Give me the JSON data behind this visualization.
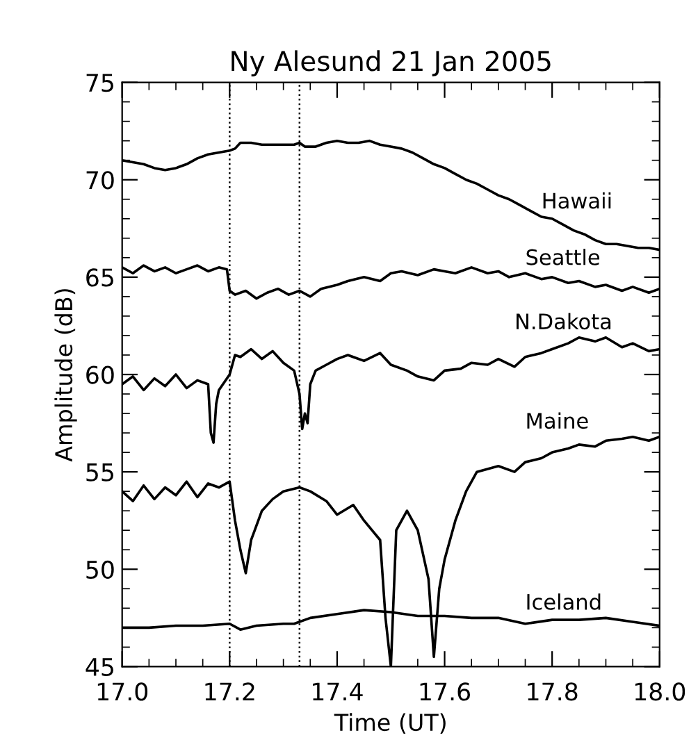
{
  "chart_data": {
    "type": "line",
    "title": "Ny Alesund 21 Jan 2005",
    "xlabel": "Time (UT)",
    "ylabel": "Amplitude (dB)",
    "xlim": [
      17.0,
      18.0
    ],
    "xticks": [
      {
        "value": 17.0,
        "label": "17.0"
      },
      17.2,
      17.4,
      17.6,
      17.8,
      {
        "value": 18.0,
        "label": "18.0"
      }
    ],
    "ylim": [
      45,
      75
    ],
    "yticks": [
      45,
      50,
      55,
      60,
      65,
      70,
      75
    ],
    "grid": false,
    "legend": "right",
    "marker": "none",
    "line_style": "solid",
    "ref_lines": [
      {
        "axis": "x",
        "value": 17.2,
        "color": "#000000",
        "line_style": "dotted"
      },
      {
        "axis": "x",
        "value": 17.33,
        "color": "#000000",
        "line_style": "dotted"
      }
    ],
    "series": [
      {
        "name": "Hawaii",
        "color": "#000000",
        "x": [
          17.0,
          17.02,
          17.04,
          17.06,
          17.08,
          17.1,
          17.12,
          17.14,
          17.16,
          17.18,
          17.2,
          17.21,
          17.22,
          17.24,
          17.26,
          17.28,
          17.3,
          17.32,
          17.33,
          17.34,
          17.36,
          17.38,
          17.4,
          17.42,
          17.44,
          17.46,
          17.48,
          17.5,
          17.52,
          17.54,
          17.56,
          17.58,
          17.6,
          17.62,
          17.64,
          17.66,
          17.68,
          17.7,
          17.72,
          17.74,
          17.76,
          17.78,
          17.8,
          17.82,
          17.84,
          17.86,
          17.88,
          17.9,
          17.92,
          17.94,
          17.96,
          17.98,
          18.0
        ],
        "values": [
          71.0,
          70.9,
          70.8,
          70.6,
          70.5,
          70.6,
          70.8,
          71.1,
          71.3,
          71.4,
          71.5,
          71.6,
          71.9,
          71.9,
          71.8,
          71.8,
          71.8,
          71.8,
          71.9,
          71.7,
          71.7,
          71.9,
          72.0,
          71.9,
          71.9,
          72.0,
          71.8,
          71.7,
          71.6,
          71.4,
          71.1,
          70.8,
          70.6,
          70.3,
          70.0,
          69.8,
          69.5,
          69.2,
          69.0,
          68.7,
          68.4,
          68.1,
          68.0,
          67.7,
          67.4,
          67.2,
          66.9,
          66.7,
          66.7,
          66.6,
          66.5,
          66.5,
          66.4
        ]
      },
      {
        "name": "Seattle",
        "color": "#000000",
        "x": [
          17.0,
          17.02,
          17.04,
          17.06,
          17.08,
          17.1,
          17.12,
          17.14,
          17.16,
          17.18,
          17.195,
          17.2,
          17.21,
          17.23,
          17.25,
          17.27,
          17.29,
          17.31,
          17.33,
          17.35,
          17.37,
          17.4,
          17.42,
          17.45,
          17.48,
          17.5,
          17.52,
          17.55,
          17.58,
          17.6,
          17.62,
          17.65,
          17.68,
          17.7,
          17.72,
          17.75,
          17.78,
          17.8,
          17.83,
          17.85,
          17.88,
          17.9,
          17.93,
          17.95,
          17.98,
          18.0
        ],
        "values": [
          65.5,
          65.2,
          65.6,
          65.3,
          65.5,
          65.2,
          65.4,
          65.6,
          65.3,
          65.5,
          65.4,
          64.3,
          64.1,
          64.3,
          63.9,
          64.2,
          64.4,
          64.1,
          64.3,
          64.0,
          64.4,
          64.6,
          64.8,
          65.0,
          64.8,
          65.2,
          65.3,
          65.1,
          65.4,
          65.3,
          65.2,
          65.5,
          65.2,
          65.3,
          65.0,
          65.2,
          64.9,
          65.0,
          64.7,
          64.8,
          64.5,
          64.6,
          64.3,
          64.5,
          64.2,
          64.4
        ]
      },
      {
        "name": "N.Dakota",
        "color": "#000000",
        "x": [
          17.0,
          17.02,
          17.04,
          17.06,
          17.08,
          17.1,
          17.12,
          17.14,
          17.16,
          17.165,
          17.17,
          17.175,
          17.18,
          17.19,
          17.2,
          17.21,
          17.22,
          17.24,
          17.26,
          17.28,
          17.3,
          17.32,
          17.33,
          17.335,
          17.34,
          17.345,
          17.35,
          17.36,
          17.38,
          17.4,
          17.42,
          17.45,
          17.48,
          17.5,
          17.53,
          17.55,
          17.58,
          17.6,
          17.63,
          17.65,
          17.68,
          17.7,
          17.73,
          17.75,
          17.78,
          17.8,
          17.83,
          17.85,
          17.88,
          17.9,
          17.93,
          17.95,
          17.98,
          18.0
        ],
        "values": [
          59.5,
          59.9,
          59.2,
          59.8,
          59.4,
          60.0,
          59.3,
          59.7,
          59.5,
          57.0,
          56.5,
          58.5,
          59.2,
          59.6,
          60.0,
          61.0,
          60.9,
          61.3,
          60.8,
          61.2,
          60.6,
          60.2,
          59.0,
          57.2,
          58.0,
          57.5,
          59.5,
          60.2,
          60.5,
          60.8,
          61.0,
          60.7,
          61.1,
          60.5,
          60.2,
          59.9,
          59.7,
          60.2,
          60.3,
          60.6,
          60.5,
          60.8,
          60.4,
          60.9,
          61.1,
          61.3,
          61.6,
          61.9,
          61.7,
          61.9,
          61.4,
          61.6,
          61.2,
          61.3
        ]
      },
      {
        "name": "Maine",
        "color": "#000000",
        "x": [
          17.0,
          17.02,
          17.04,
          17.06,
          17.08,
          17.1,
          17.12,
          17.14,
          17.16,
          17.18,
          17.2,
          17.21,
          17.22,
          17.23,
          17.24,
          17.26,
          17.28,
          17.3,
          17.33,
          17.35,
          17.38,
          17.4,
          17.43,
          17.45,
          17.48,
          17.49,
          17.5,
          17.51,
          17.53,
          17.55,
          17.57,
          17.58,
          17.59,
          17.6,
          17.62,
          17.64,
          17.66,
          17.7,
          17.73,
          17.75,
          17.78,
          17.8,
          17.83,
          17.85,
          17.88,
          17.9,
          17.93,
          17.95,
          17.98,
          18.0
        ],
        "values": [
          54.0,
          53.5,
          54.3,
          53.6,
          54.2,
          53.8,
          54.5,
          53.7,
          54.4,
          54.2,
          54.5,
          52.5,
          51.0,
          49.8,
          51.5,
          53.0,
          53.6,
          54.0,
          54.2,
          54.0,
          53.5,
          52.8,
          53.3,
          52.5,
          51.5,
          47.5,
          45.0,
          52.0,
          53.0,
          52.0,
          49.5,
          45.5,
          49.0,
          50.5,
          52.5,
          54.0,
          55.0,
          55.3,
          55.0,
          55.5,
          55.7,
          56.0,
          56.2,
          56.4,
          56.3,
          56.6,
          56.7,
          56.8,
          56.6,
          56.8
        ]
      },
      {
        "name": "Iceland",
        "color": "#000000",
        "x": [
          17.0,
          17.05,
          17.1,
          17.15,
          17.2,
          17.22,
          17.25,
          17.3,
          17.32,
          17.35,
          17.4,
          17.45,
          17.5,
          17.55,
          17.6,
          17.65,
          17.7,
          17.75,
          17.8,
          17.85,
          17.9,
          17.95,
          18.0
        ],
        "values": [
          47.0,
          47.0,
          47.1,
          47.1,
          47.2,
          46.9,
          47.1,
          47.2,
          47.2,
          47.5,
          47.7,
          47.9,
          47.8,
          47.6,
          47.6,
          47.5,
          47.5,
          47.2,
          47.4,
          47.4,
          47.5,
          47.3,
          47.1
        ]
      }
    ]
  }
}
